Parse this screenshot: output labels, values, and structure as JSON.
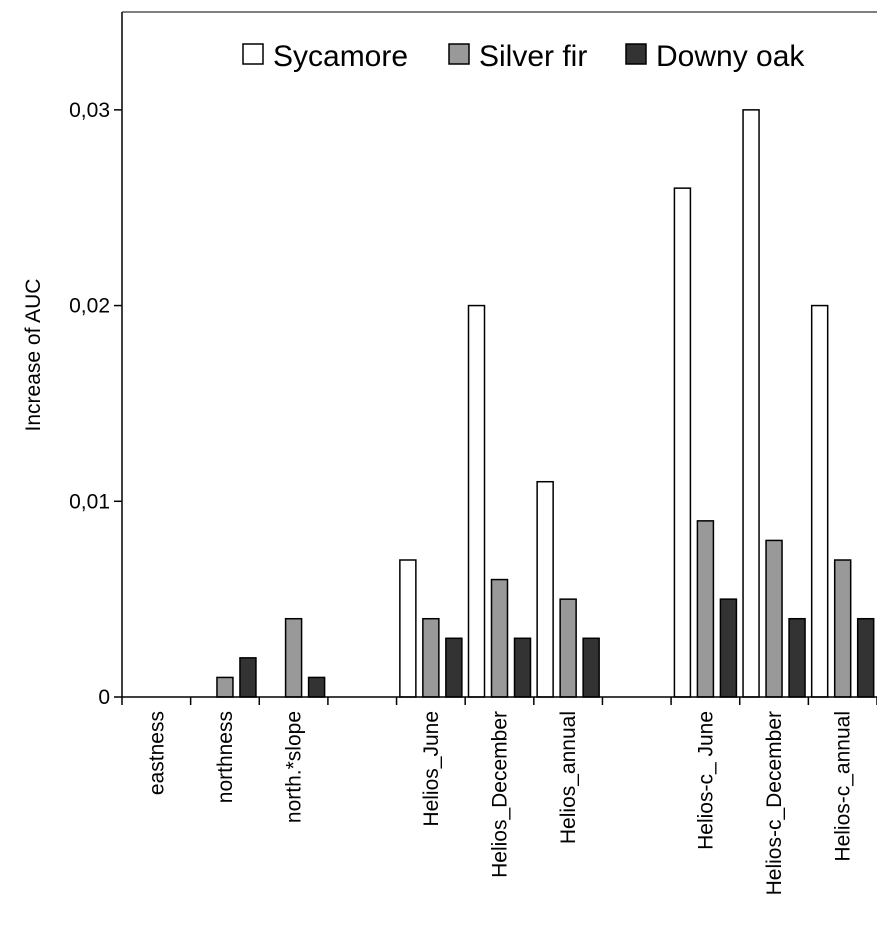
{
  "chart_data": {
    "type": "bar",
    "title": "",
    "xlabel": "",
    "ylabel": "Increase of AUC",
    "ylim": [
      0,
      0.035
    ],
    "yticks": [
      {
        "value": 0,
        "label": "0"
      },
      {
        "value": 0.01,
        "label": "0,01"
      },
      {
        "value": 0.02,
        "label": "0,02"
      },
      {
        "value": 0.03,
        "label": "0,03"
      }
    ],
    "grid": false,
    "legend": "top-right",
    "categories": [
      "eastness",
      "northness",
      "north.*slope",
      "",
      "Helios_June",
      "Helios_December",
      "Helios_annual",
      "",
      "Helios-c_ June",
      "Helios-c_December",
      "Helios-c_annual"
    ],
    "series": [
      {
        "name": "Sycamore",
        "color": "#ffffff",
        "values": [
          0,
          0,
          0,
          null,
          0.007,
          0.02,
          0.011,
          null,
          0.026,
          0.03,
          0.02
        ]
      },
      {
        "name": "Silver fir",
        "color": "#999999",
        "values": [
          0,
          0.001,
          0.004,
          null,
          0.004,
          0.006,
          0.005,
          null,
          0.009,
          0.008,
          0.007
        ]
      },
      {
        "name": "Downy oak",
        "color": "#333333",
        "values": [
          0,
          0.002,
          0.001,
          null,
          0.003,
          0.003,
          0.003,
          null,
          0.005,
          0.004,
          0.004
        ]
      }
    ]
  }
}
